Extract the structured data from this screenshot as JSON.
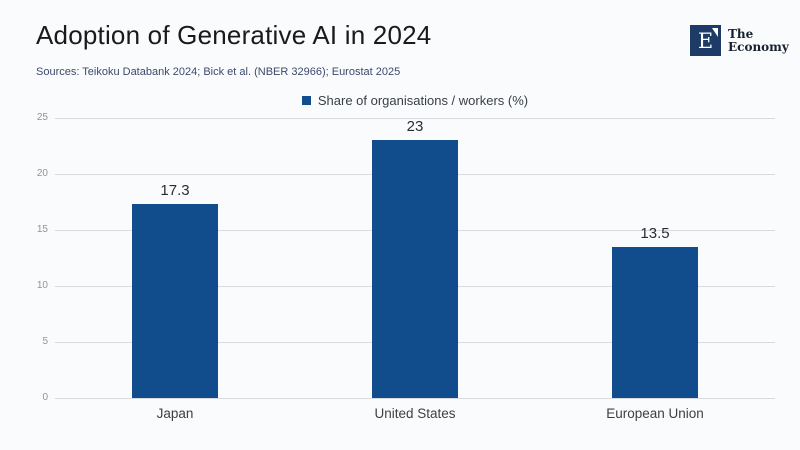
{
  "header": {
    "title": "Adoption of Generative AI in 2024",
    "sources": "Sources: Teikoku Databank 2024; Bick et al. (NBER 32966); Eurostat 2025"
  },
  "logo": {
    "letter": "E",
    "brand_line1": "The",
    "brand_line2": "Economy",
    "square_color": "#1d3b66"
  },
  "legend": {
    "label": "Share of organisations / workers (%)"
  },
  "chart_data": {
    "type": "bar",
    "title": "Adoption of Generative AI in 2024",
    "categories": [
      "Japan",
      "United States",
      "European Union"
    ],
    "values": [
      17.3,
      23,
      13.5
    ],
    "value_labels": [
      "17.3",
      "23",
      "13.5"
    ],
    "xlabel": "",
    "ylabel": "",
    "ylim": [
      0,
      25
    ],
    "yticks": [
      0,
      5,
      10,
      15,
      20,
      25
    ],
    "grid": "horizontal",
    "legend": [
      "Share of organisations / workers (%)"
    ],
    "legend_position": "top-center",
    "bar_color": "#114c8c"
  },
  "colors": {
    "bar": "#114c8c",
    "gridline": "#d9dbe0",
    "background": "#fafbfd",
    "logo_navy": "#1d3b66"
  }
}
